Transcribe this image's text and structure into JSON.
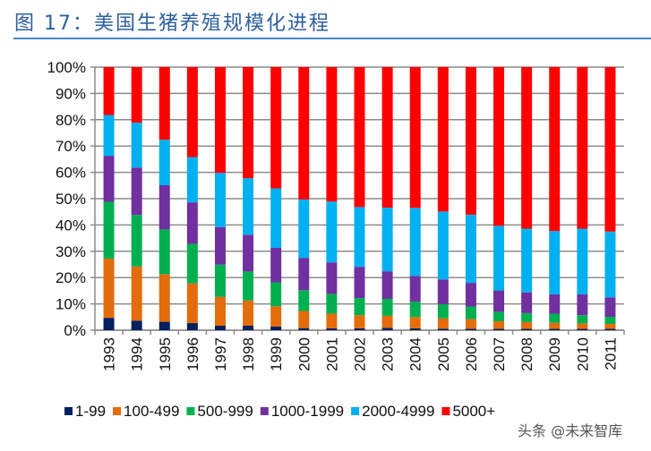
{
  "title": "图 17：美国生猪养殖规模化进程",
  "watermark": "头条 @未来智库",
  "chart_data": {
    "type": "bar",
    "stacked": true,
    "percent_stacked": true,
    "title": "",
    "xlabel": "",
    "ylabel": "",
    "ylim": [
      0,
      100
    ],
    "y_ticks": [
      "0%",
      "10%",
      "20%",
      "30%",
      "40%",
      "50%",
      "60%",
      "70%",
      "80%",
      "90%",
      "100%"
    ],
    "grid": true,
    "legend_position": "bottom",
    "categories": [
      "1993",
      "1994",
      "1995",
      "1996",
      "1997",
      "1998",
      "1999",
      "2000",
      "2001",
      "2002",
      "2003",
      "2004",
      "2005",
      "2006",
      "2007",
      "2008",
      "2009",
      "2010",
      "2011"
    ],
    "series": [
      {
        "name": "1-99",
        "color": "#002060",
        "values": [
          4.7,
          3.6,
          3.2,
          2.7,
          1.7,
          1.7,
          1.4,
          0.8,
          0.7,
          0.7,
          0.9,
          0.7,
          0.6,
          0.5,
          0.5,
          0.5,
          0.5,
          0.5,
          0.5
        ]
      },
      {
        "name": "100-499",
        "color": "#E46C0A",
        "values": [
          22.5,
          20.6,
          18.1,
          15.1,
          11.0,
          9.6,
          7.7,
          6.5,
          5.6,
          5.0,
          4.6,
          4.3,
          3.9,
          3.7,
          2.9,
          2.6,
          2.3,
          2.1,
          1.9
        ]
      },
      {
        "name": "500-999",
        "color": "#00B050",
        "values": [
          21.6,
          19.6,
          17.0,
          15.0,
          12.2,
          11.0,
          9.1,
          7.9,
          7.5,
          6.5,
          6.4,
          5.9,
          5.4,
          4.8,
          3.6,
          3.4,
          3.5,
          3.1,
          2.7
        ]
      },
      {
        "name": "1000-1999",
        "color": "#7030A0",
        "values": [
          17.5,
          18.0,
          16.8,
          15.8,
          14.3,
          14.0,
          13.1,
          12.3,
          12.0,
          11.9,
          10.5,
          9.7,
          9.4,
          9.0,
          8.1,
          7.9,
          7.3,
          7.9,
          7.4
        ]
      },
      {
        "name": "2000-4999",
        "color": "#00B0F0",
        "values": [
          15.5,
          17.1,
          17.3,
          17.2,
          20.6,
          21.5,
          22.6,
          22.2,
          23.1,
          22.7,
          24.2,
          25.9,
          25.8,
          25.9,
          24.6,
          24.2,
          24.1,
          25.0,
          25.0
        ]
      },
      {
        "name": "5000+",
        "color": "#FF0000",
        "values": [
          18.2,
          21.1,
          27.6,
          34.2,
          40.2,
          42.2,
          46.1,
          50.3,
          51.1,
          53.2,
          53.4,
          53.5,
          54.9,
          56.1,
          60.3,
          61.4,
          62.3,
          61.4,
          62.5
        ]
      }
    ]
  }
}
